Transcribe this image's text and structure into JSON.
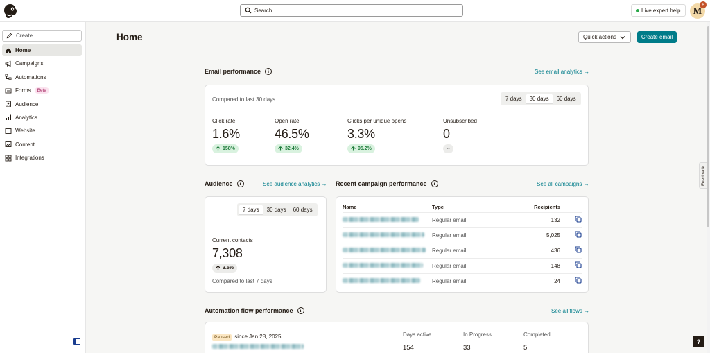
{
  "topbar": {
    "search_placeholder": "Search...",
    "live_help_label": "Live expert help",
    "avatar_initial": "M",
    "notification_count": "6"
  },
  "sidebar": {
    "create_label": "Create",
    "items": [
      {
        "label": "Home",
        "icon": "home-icon",
        "active": true
      },
      {
        "label": "Campaigns",
        "icon": "megaphone-icon"
      },
      {
        "label": "Automations",
        "icon": "automation-icon"
      },
      {
        "label": "Forms",
        "icon": "forms-icon",
        "badge": "Beta"
      },
      {
        "label": "Audience",
        "icon": "audience-icon"
      },
      {
        "label": "Analytics",
        "icon": "analytics-icon"
      },
      {
        "label": "Website",
        "icon": "website-icon"
      },
      {
        "label": "Content",
        "icon": "content-icon"
      },
      {
        "label": "Integrations",
        "icon": "integrations-icon"
      }
    ]
  },
  "header": {
    "title": "Home",
    "quick_actions_label": "Quick actions",
    "create_email_label": "Create email"
  },
  "email_performance": {
    "title": "Email performance",
    "link": "See email analytics →",
    "compared_label": "Compared to last 30 days",
    "ranges": [
      "7 days",
      "30 days",
      "60 days"
    ],
    "active_range": "30 days",
    "metrics": [
      {
        "label": "Click rate",
        "value": "1.6%",
        "change": "158%"
      },
      {
        "label": "Open rate",
        "value": "46.5%",
        "change": "32.4%"
      },
      {
        "label": "Clicks per unique opens",
        "value": "3.3%",
        "change": "95.2%"
      },
      {
        "label": "Unsubscribed",
        "value": "0",
        "change": "--"
      }
    ]
  },
  "audience": {
    "title": "Audience",
    "link": "See audience analytics →",
    "ranges": [
      "7 days",
      "30 days",
      "60 days"
    ],
    "active_range": "7 days",
    "current_contacts_label": "Current contacts",
    "current_contacts_value": "7,308",
    "change": "3.5%",
    "compared_label": "Compared to last 7 days"
  },
  "recent_campaigns": {
    "title": "Recent campaign performance",
    "link": "See all campaigns →",
    "columns": [
      "Name",
      "Type",
      "Recipients"
    ],
    "rows": [
      {
        "type": "Regular email",
        "recipients": "132"
      },
      {
        "type": "Regular email",
        "recipients": "5,025"
      },
      {
        "type": "Regular email",
        "recipients": "436"
      },
      {
        "type": "Regular email",
        "recipients": "148"
      },
      {
        "type": "Regular email",
        "recipients": "24"
      }
    ]
  },
  "automation_flow": {
    "title": "Automation flow performance",
    "link": "See all flows →",
    "status_badge": "Paused",
    "since_label": "since Jan 28, 2025",
    "columns": [
      "Days active",
      "In Progress",
      "Completed"
    ],
    "values": [
      "154",
      "33",
      "5"
    ]
  },
  "feedback_label": "Feedback",
  "help_label": "?",
  "colors": {
    "accent": "#007c89",
    "positive_bg": "#d9f2df",
    "positive_text": "#1d7a39"
  }
}
